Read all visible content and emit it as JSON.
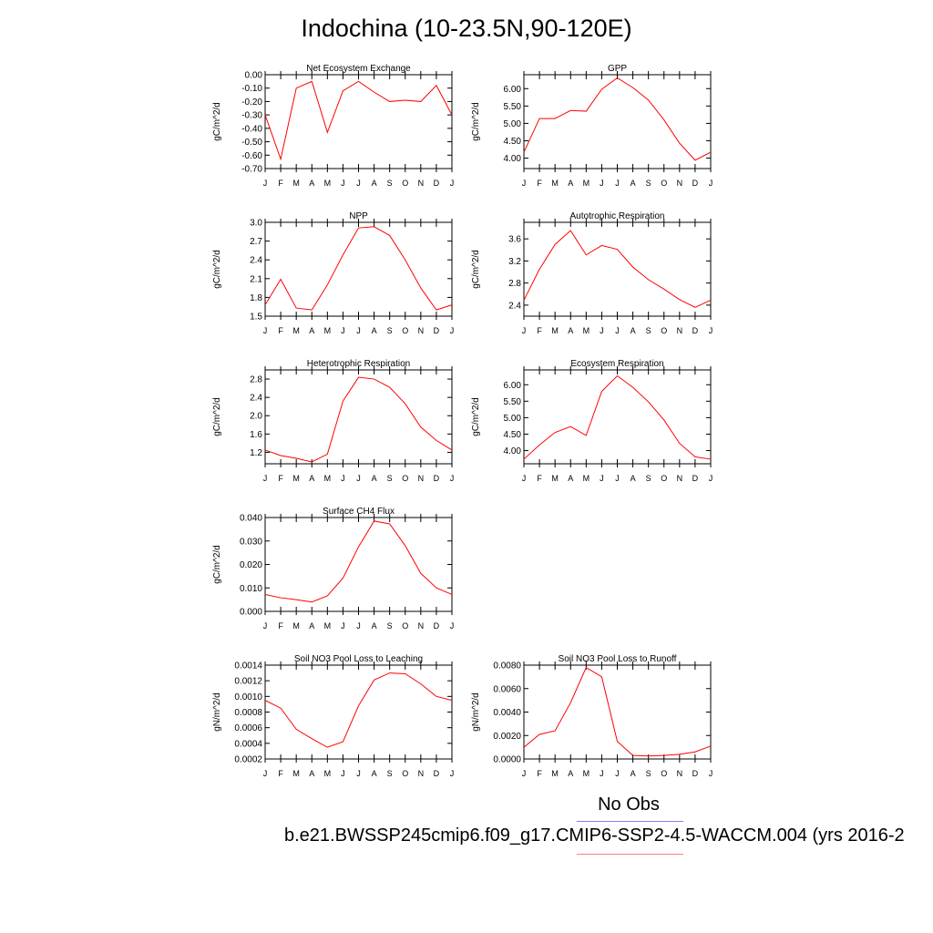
{
  "title": "Indochina (10-23.5N,90-120E)",
  "legend": {
    "obs_label": "No Obs",
    "case_label": "b.e21.BWSSP245cmip6.f09_g17.CMIP6-SSP2-4.5-WACCM.004 (yrs 2016-2",
    "obs_color": "#7f7fff",
    "case_color": "#ff7f7f"
  },
  "chart_data": [
    {
      "type": "line",
      "title": "Net Ecosystem Exchange",
      "ylabel": "gC/m^2/d",
      "categories": [
        "J",
        "F",
        "M",
        "A",
        "M",
        "J",
        "J",
        "A",
        "S",
        "O",
        "N",
        "D",
        "J"
      ],
      "ylim": [
        -0.7,
        0.0
      ],
      "yticks": [
        "0.00",
        "-0.10",
        "-0.20",
        "-0.30",
        "-0.40",
        "-0.50",
        "-0.60",
        "-0.70"
      ],
      "series": [
        {
          "color": "#ff0000",
          "values": [
            -0.3,
            -0.63,
            -0.1,
            -0.05,
            -0.43,
            -0.12,
            -0.05,
            -0.13,
            -0.2,
            -0.19,
            -0.2,
            -0.08,
            -0.3
          ]
        }
      ]
    },
    {
      "type": "line",
      "title": "GPP",
      "ylabel": "gC/m^2/d",
      "categories": [
        "J",
        "F",
        "M",
        "A",
        "M",
        "J",
        "J",
        "A",
        "S",
        "O",
        "N",
        "D",
        "J"
      ],
      "ylim": [
        3.7,
        6.4
      ],
      "yticks": [
        "6.00",
        "5.50",
        "5.00",
        "4.50",
        "4.00"
      ],
      "series": [
        {
          "color": "#ff0000",
          "values": [
            4.17,
            5.14,
            5.14,
            5.37,
            5.35,
            5.98,
            6.31,
            6.03,
            5.67,
            5.1,
            4.43,
            3.94,
            4.17
          ]
        }
      ]
    },
    {
      "type": "line",
      "title": "NPP",
      "ylabel": "gC/m^2/d",
      "categories": [
        "J",
        "F",
        "M",
        "A",
        "M",
        "J",
        "J",
        "A",
        "S",
        "O",
        "N",
        "D",
        "J"
      ],
      "ylim": [
        1.5,
        3.0
      ],
      "yticks": [
        "3.0",
        "2.7",
        "2.4",
        "2.1",
        "1.8",
        "1.5"
      ],
      "series": [
        {
          "color": "#ff0000",
          "values": [
            1.68,
            2.09,
            1.63,
            1.6,
            2.0,
            2.48,
            2.91,
            2.93,
            2.79,
            2.4,
            1.95,
            1.6,
            1.68
          ]
        }
      ]
    },
    {
      "type": "line",
      "title": "Autotrophic Respiration",
      "ylabel": "gC/m^2/d",
      "categories": [
        "J",
        "F",
        "M",
        "A",
        "M",
        "J",
        "J",
        "A",
        "S",
        "O",
        "N",
        "D",
        "J"
      ],
      "ylim": [
        2.2,
        3.9
      ],
      "yticks": [
        "3.6",
        "3.2",
        "2.8",
        "2.4"
      ],
      "series": [
        {
          "color": "#ff0000",
          "values": [
            2.49,
            3.05,
            3.5,
            3.75,
            3.31,
            3.48,
            3.41,
            3.09,
            2.86,
            2.69,
            2.5,
            2.36,
            2.49
          ]
        }
      ]
    },
    {
      "type": "line",
      "title": "Heterotrophic Respiration",
      "ylabel": "gC/m^2/d",
      "categories": [
        "J",
        "F",
        "M",
        "A",
        "M",
        "J",
        "J",
        "A",
        "S",
        "O",
        "N",
        "D",
        "J"
      ],
      "ylim": [
        0.95,
        3.0
      ],
      "yticks": [
        "2.8",
        "2.4",
        "2.0",
        "1.6",
        "1.2"
      ],
      "series": [
        {
          "color": "#ff0000",
          "values": [
            1.25,
            1.13,
            1.07,
            0.99,
            1.16,
            2.32,
            2.84,
            2.8,
            2.62,
            2.26,
            1.75,
            1.46,
            1.25
          ]
        }
      ]
    },
    {
      "type": "line",
      "title": "Ecosystem Respiration",
      "ylabel": "gC/m^2/d",
      "categories": [
        "J",
        "F",
        "M",
        "A",
        "M",
        "J",
        "J",
        "A",
        "S",
        "O",
        "N",
        "D",
        "J"
      ],
      "ylim": [
        3.6,
        6.45
      ],
      "yticks": [
        "6.00",
        "5.50",
        "5.00",
        "4.50",
        "4.00"
      ],
      "series": [
        {
          "color": "#ff0000",
          "values": [
            3.74,
            4.17,
            4.55,
            4.73,
            4.46,
            5.8,
            6.27,
            5.92,
            5.48,
            4.93,
            4.22,
            3.81,
            3.74
          ]
        }
      ]
    },
    {
      "type": "line",
      "title": "Surface CH4 Flux",
      "ylabel": "gC/m^2/d",
      "categories": [
        "J",
        "F",
        "M",
        "A",
        "M",
        "J",
        "J",
        "A",
        "S",
        "O",
        "N",
        "D",
        "J"
      ],
      "ylim": [
        0.0,
        0.04
      ],
      "yticks": [
        "0.040",
        "0.030",
        "0.020",
        "0.010",
        "0.000"
      ],
      "series": [
        {
          "color": "#ff0000",
          "values": [
            0.0072,
            0.0058,
            0.005,
            0.004,
            0.0066,
            0.0142,
            0.0275,
            0.0385,
            0.0373,
            0.028,
            0.0162,
            0.01,
            0.0072
          ]
        }
      ]
    },
    {
      "type": "line",
      "title": "Soil NO3 Pool Loss to Leaching",
      "ylabel": "gN/m^2/d",
      "categories": [
        "J",
        "F",
        "M",
        "A",
        "M",
        "J",
        "J",
        "A",
        "S",
        "O",
        "N",
        "D",
        "J"
      ],
      "ylim": [
        0.0002,
        0.0014
      ],
      "yticks": [
        "0.0014",
        "0.0012",
        "0.0010",
        "0.0008",
        "0.0006",
        "0.0004",
        "0.0002"
      ],
      "series": [
        {
          "color": "#ff0000",
          "values": [
            0.00095,
            0.00085,
            0.00058,
            0.00046,
            0.00035,
            0.00042,
            0.00088,
            0.00121,
            0.0013,
            0.00129,
            0.00116,
            0.001,
            0.00095
          ]
        }
      ]
    },
    {
      "type": "line",
      "title": "Soil NO3 Pool Loss to Runoff",
      "ylabel": "gN/m^2/d",
      "categories": [
        "J",
        "F",
        "M",
        "A",
        "M",
        "J",
        "J",
        "A",
        "S",
        "O",
        "N",
        "D",
        "J"
      ],
      "ylim": [
        0.0,
        0.008
      ],
      "yticks": [
        "0.0080",
        "0.0060",
        "0.0040",
        "0.0020",
        "0.0000"
      ],
      "series": [
        {
          "color": "#ff0000",
          "values": [
            0.001,
            0.0021,
            0.0024,
            0.0048,
            0.0078,
            0.007,
            0.0015,
            0.0003,
            0.00025,
            0.0003,
            0.0004,
            0.0006,
            0.0011
          ]
        }
      ]
    }
  ]
}
